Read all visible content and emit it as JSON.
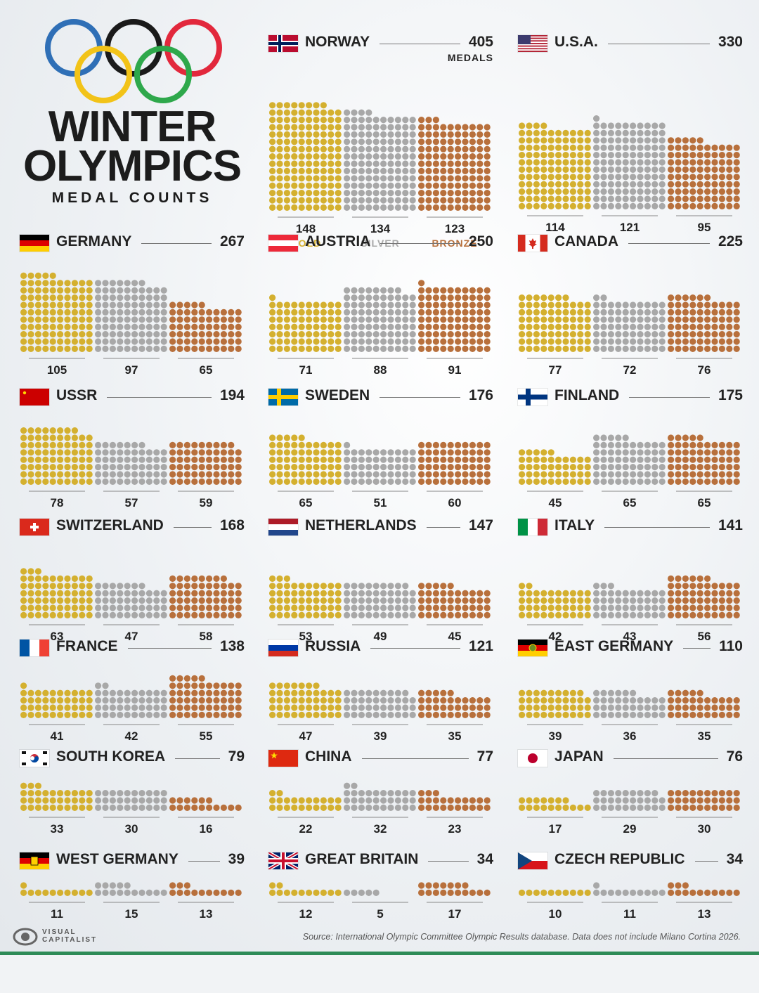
{
  "header": {
    "title_line1": "WINTER",
    "title_line2": "OLYMPICS",
    "subtitle": "MEDAL COUNTS"
  },
  "colors": {
    "gold": "#d4b02f",
    "silver": "#a8a8a8",
    "bronze": "#b8703c",
    "ring_blue": "#2f6fb6",
    "ring_yellow": "#f2c318",
    "ring_black": "#1a1a1a",
    "ring_green": "#2ea84b",
    "ring_red": "#e2283c"
  },
  "legend": {
    "medals_word": "MEDALS",
    "gold_word": "GOLD",
    "silver_word": "SILVER",
    "bronze_word": "BRONZE"
  },
  "chart_data": {
    "type": "bar",
    "title": "Winter Olympics Medal Counts",
    "unit": "medals (each dot = one medal)",
    "series_names": [
      "Gold",
      "Silver",
      "Bronze"
    ],
    "countries": [
      {
        "name": "NORWAY",
        "total": 405,
        "gold": 148,
        "silver": 134,
        "bronze": 123,
        "flag": "norway-flag-icon"
      },
      {
        "name": "U.S.A.",
        "total": 330,
        "gold": 114,
        "silver": 121,
        "bronze": 95,
        "flag": "usa-flag-icon"
      },
      {
        "name": "GERMANY",
        "total": 267,
        "gold": 105,
        "silver": 97,
        "bronze": 65,
        "flag": "germany-flag-icon"
      },
      {
        "name": "AUSTRIA",
        "total": 250,
        "gold": 71,
        "silver": 88,
        "bronze": 91,
        "flag": "austria-flag-icon"
      },
      {
        "name": "CANADA",
        "total": 225,
        "gold": 77,
        "silver": 72,
        "bronze": 76,
        "flag": "canada-flag-icon"
      },
      {
        "name": "USSR",
        "total": 194,
        "gold": 78,
        "silver": 57,
        "bronze": 59,
        "flag": "ussr-flag-icon"
      },
      {
        "name": "SWEDEN",
        "total": 176,
        "gold": 65,
        "silver": 51,
        "bronze": 60,
        "flag": "sweden-flag-icon"
      },
      {
        "name": "FINLAND",
        "total": 175,
        "gold": 45,
        "silver": 65,
        "bronze": 65,
        "flag": "finland-flag-icon"
      },
      {
        "name": "SWITZERLAND",
        "total": 168,
        "gold": 63,
        "silver": 47,
        "bronze": 58,
        "flag": "switzerland-flag-icon"
      },
      {
        "name": "NETHERLANDS",
        "total": 147,
        "gold": 53,
        "silver": 49,
        "bronze": 45,
        "flag": "netherlands-flag-icon"
      },
      {
        "name": "ITALY",
        "total": 141,
        "gold": 42,
        "silver": 43,
        "bronze": 56,
        "flag": "italy-flag-icon"
      },
      {
        "name": "FRANCE",
        "total": 138,
        "gold": 41,
        "silver": 42,
        "bronze": 55,
        "flag": "france-flag-icon"
      },
      {
        "name": "RUSSIA",
        "total": 121,
        "gold": 47,
        "silver": 39,
        "bronze": 35,
        "flag": "russia-flag-icon"
      },
      {
        "name": "EAST GERMANY",
        "total": 110,
        "gold": 39,
        "silver": 36,
        "bronze": 35,
        "flag": "east-germany-flag-icon"
      },
      {
        "name": "SOUTH KOREA",
        "total": 79,
        "gold": 33,
        "silver": 30,
        "bronze": 16,
        "flag": "south-korea-flag-icon"
      },
      {
        "name": "CHINA",
        "total": 77,
        "gold": 22,
        "silver": 32,
        "bronze": 23,
        "flag": "china-flag-icon"
      },
      {
        "name": "JAPAN",
        "total": 76,
        "gold": 17,
        "silver": 29,
        "bronze": 30,
        "flag": "japan-flag-icon"
      },
      {
        "name": "WEST GERMANY",
        "total": 39,
        "gold": 11,
        "silver": 15,
        "bronze": 13,
        "flag": "west-germany-flag-icon"
      },
      {
        "name": "GREAT BRITAIN",
        "total": 34,
        "gold": 12,
        "silver": 5,
        "bronze": 17,
        "flag": "great-britain-flag-icon"
      },
      {
        "name": "CZECH REPUBLIC",
        "total": 34,
        "gold": 10,
        "silver": 11,
        "bronze": 13,
        "flag": "czech-republic-flag-icon"
      }
    ]
  },
  "footer": {
    "logo_line1": "VISUAL",
    "logo_line2": "CAPITALIST",
    "source": "Source: International Olympic Committee Olympic Results database. Data does not include Milano Cortina 2026."
  }
}
